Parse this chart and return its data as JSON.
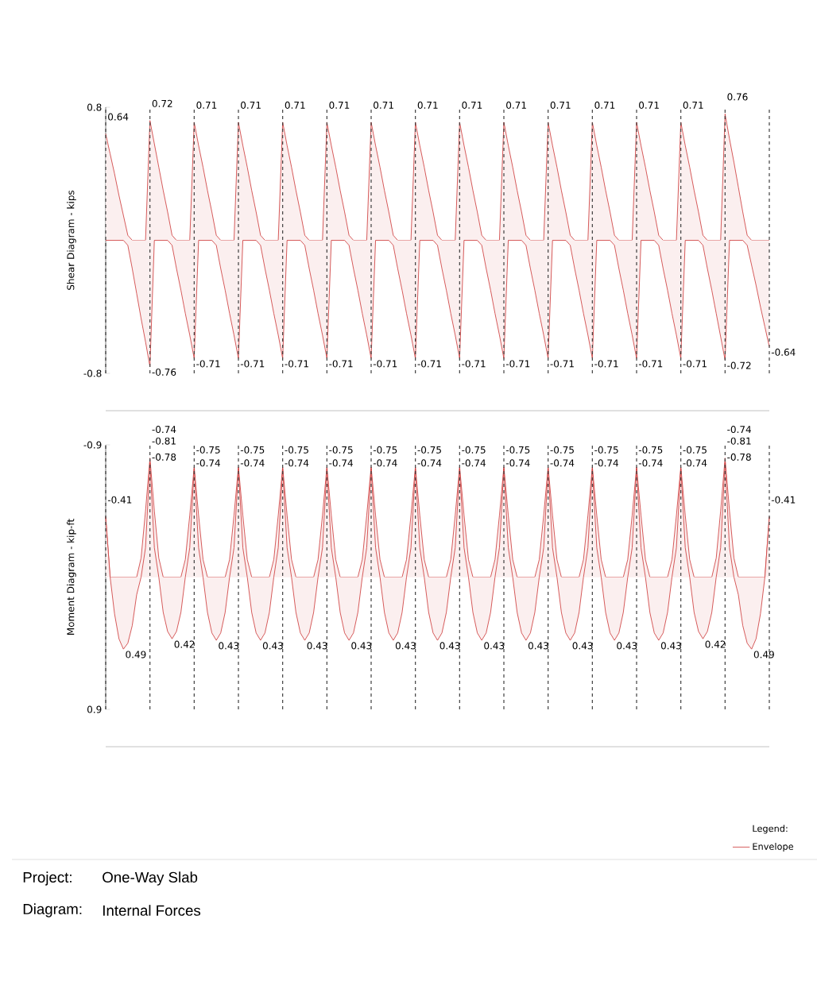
{
  "chart_data": [
    {
      "type": "area",
      "ylabel": "Shear Diagram - kips",
      "ylim": [
        -0.8,
        0.8
      ],
      "yticks": [
        -0.8,
        0.8
      ],
      "tick_labels": "y",
      "categories": [
        null,
        null,
        null,
        null,
        null,
        null,
        null,
        null,
        null,
        null,
        null,
        null,
        null,
        null,
        null,
        null,
        null,
        null,
        null,
        null,
        null,
        null,
        null,
        null,
        null,
        null,
        null,
        null,
        null,
        null,
        null,
        null,
        null,
        null,
        null,
        null,
        null,
        null,
        null,
        null,
        null,
        null,
        null,
        null,
        null,
        null,
        null,
        null,
        null,
        null,
        null,
        null,
        null,
        null,
        null,
        null,
        null,
        null,
        null,
        null,
        null,
        null,
        null,
        null,
        null,
        null,
        null,
        null,
        null,
        null,
        null,
        null,
        null,
        null,
        null,
        null,
        null,
        null,
        null,
        null,
        null,
        null,
        null,
        null,
        null,
        null,
        null,
        null,
        null,
        null,
        null,
        null,
        null,
        null,
        null,
        null,
        null,
        null,
        null,
        null,
        null,
        null,
        null,
        null,
        null,
        null,
        null,
        null,
        null,
        null,
        null,
        null,
        null,
        null,
        null,
        null,
        null,
        null,
        null,
        null,
        null,
        null,
        null,
        null,
        null,
        null,
        null,
        null,
        null,
        null,
        null,
        null,
        null,
        null,
        null,
        null,
        null,
        null,
        null,
        null,
        null,
        null,
        null,
        null,
        null,
        null,
        null,
        null,
        null,
        null,
        null
      ],
      "series": [
        {
          "color": "#cc3333",
          "values": [
            0.64,
            0.52,
            0.4,
            0.27,
            0.15,
            0.03,
            0,
            0,
            0,
            0,
            0.72,
            0.58,
            0.44,
            0.3,
            0.17,
            0.03,
            0,
            0,
            0,
            0,
            0.71,
            0.57,
            0.44,
            0.3,
            0.17,
            0.03,
            0,
            0,
            0,
            0,
            0.71,
            0.57,
            0.44,
            0.3,
            0.17,
            0.03,
            0,
            0,
            0,
            0,
            0.71,
            0.57,
            0.44,
            0.3,
            0.17,
            0.03,
            0,
            0,
            0,
            0,
            0.71,
            0.57,
            0.44,
            0.3,
            0.17,
            0.03,
            0,
            0,
            0,
            0,
            0.71,
            0.57,
            0.44,
            0.3,
            0.17,
            0.03,
            0,
            0,
            0,
            0,
            0.71,
            0.57,
            0.44,
            0.3,
            0.17,
            0.03,
            0,
            0,
            0,
            0,
            0.71,
            0.57,
            0.44,
            0.3,
            0.17,
            0.03,
            0,
            0,
            0,
            0,
            0.71,
            0.57,
            0.44,
            0.3,
            0.17,
            0.03,
            0,
            0,
            0,
            0,
            0.71,
            0.57,
            0.44,
            0.3,
            0.17,
            0.03,
            0,
            0,
            0,
            0,
            0.71,
            0.57,
            0.44,
            0.3,
            0.17,
            0.03,
            0,
            0,
            0,
            0,
            0.71,
            0.57,
            0.44,
            0.3,
            0.17,
            0.03,
            0,
            0,
            0,
            0,
            0.71,
            0.57,
            0.44,
            0.3,
            0.17,
            0.03,
            0,
            0,
            0,
            0,
            0.76,
            0.61,
            0.47,
            0.32,
            0.17,
            0.03,
            0,
            0,
            0,
            0,
            0
          ],
          "value_labels": [
            "0.64",
            null,
            null,
            null,
            null,
            null,
            null,
            null,
            null,
            null,
            "0.72",
            null,
            null,
            null,
            null,
            null,
            null,
            null,
            null,
            null,
            "0.71",
            null,
            null,
            null,
            null,
            null,
            null,
            null,
            null,
            null,
            "0.71",
            null,
            null,
            null,
            null,
            null,
            null,
            null,
            null,
            null,
            "0.71",
            null,
            null,
            null,
            null,
            null,
            null,
            null,
            null,
            null,
            "0.71",
            null,
            null,
            null,
            null,
            null,
            null,
            null,
            null,
            null,
            "0.71",
            null,
            null,
            null,
            null,
            null,
            null,
            null,
            null,
            null,
            "0.71",
            null,
            null,
            null,
            null,
            null,
            null,
            null,
            null,
            null,
            "0.71",
            null,
            null,
            null,
            null,
            null,
            null,
            null,
            null,
            null,
            "0.71",
            null,
            null,
            null,
            null,
            null,
            null,
            null,
            null,
            null,
            "0.71",
            null,
            null,
            null,
            null,
            null,
            null,
            null,
            null,
            null,
            "0.71",
            null,
            null,
            null,
            null,
            null,
            null,
            null,
            null,
            null,
            "0.71",
            null,
            null,
            null,
            null,
            null,
            null,
            null,
            null,
            null,
            "0.71",
            null,
            null,
            null,
            null,
            null,
            null,
            null,
            null,
            null,
            "0.76",
            null,
            null,
            null,
            null,
            null,
            null,
            null,
            null,
            null,
            null
          ]
        },
        {
          "color": "#cc3333",
          "values": [
            0,
            0,
            0,
            0,
            0,
            -0.03,
            -0.17,
            -0.32,
            -0.47,
            -0.61,
            -0.76,
            0,
            0,
            0,
            0,
            -0.03,
            -0.17,
            -0.3,
            -0.44,
            -0.57,
            -0.71,
            0,
            0,
            0,
            0,
            -0.03,
            -0.17,
            -0.3,
            -0.44,
            -0.57,
            -0.71,
            0,
            0,
            0,
            0,
            -0.03,
            -0.17,
            -0.3,
            -0.44,
            -0.57,
            -0.71,
            0,
            0,
            0,
            0,
            -0.03,
            -0.17,
            -0.3,
            -0.44,
            -0.57,
            -0.71,
            0,
            0,
            0,
            0,
            -0.03,
            -0.17,
            -0.3,
            -0.44,
            -0.57,
            -0.71,
            0,
            0,
            0,
            0,
            -0.03,
            -0.17,
            -0.3,
            -0.44,
            -0.57,
            -0.71,
            0,
            0,
            0,
            0,
            -0.03,
            -0.17,
            -0.3,
            -0.44,
            -0.57,
            -0.71,
            0,
            0,
            0,
            0,
            -0.03,
            -0.17,
            -0.3,
            -0.44,
            -0.57,
            -0.71,
            0,
            0,
            0,
            0,
            -0.03,
            -0.17,
            -0.3,
            -0.44,
            -0.57,
            -0.71,
            0,
            0,
            0,
            0,
            -0.03,
            -0.17,
            -0.3,
            -0.44,
            -0.57,
            -0.71,
            0,
            0,
            0,
            0,
            -0.03,
            -0.17,
            -0.3,
            -0.44,
            -0.57,
            -0.71,
            0,
            0,
            0,
            0,
            -0.03,
            -0.17,
            -0.3,
            -0.44,
            -0.57,
            -0.71,
            0,
            0,
            0,
            0,
            -0.03,
            -0.17,
            -0.3,
            -0.44,
            -0.58,
            -0.72,
            0,
            0,
            0,
            0,
            -0.03,
            -0.15,
            -0.27,
            -0.4,
            -0.52,
            -0.64
          ],
          "value_labels": [
            null,
            null,
            null,
            null,
            null,
            null,
            null,
            null,
            null,
            null,
            "-0.76",
            null,
            null,
            null,
            null,
            null,
            null,
            null,
            null,
            null,
            "-0.71",
            null,
            null,
            null,
            null,
            null,
            null,
            null,
            null,
            null,
            "-0.71",
            null,
            null,
            null,
            null,
            null,
            null,
            null,
            null,
            null,
            "-0.71",
            null,
            null,
            null,
            null,
            null,
            null,
            null,
            null,
            null,
            "-0.71",
            null,
            null,
            null,
            null,
            null,
            null,
            null,
            null,
            null,
            "-0.71",
            null,
            null,
            null,
            null,
            null,
            null,
            null,
            null,
            null,
            "-0.71",
            null,
            null,
            null,
            null,
            null,
            null,
            null,
            null,
            null,
            "-0.71",
            null,
            null,
            null,
            null,
            null,
            null,
            null,
            null,
            null,
            "-0.71",
            null,
            null,
            null,
            null,
            null,
            null,
            null,
            null,
            null,
            "-0.71",
            null,
            null,
            null,
            null,
            null,
            null,
            null,
            null,
            null,
            "-0.71",
            null,
            null,
            null,
            null,
            null,
            null,
            null,
            null,
            null,
            "-0.71",
            null,
            null,
            null,
            null,
            null,
            null,
            null,
            null,
            null,
            "-0.71",
            null,
            null,
            null,
            null,
            null,
            null,
            null,
            null,
            null,
            "-0.72",
            null,
            null,
            null,
            null,
            null,
            null,
            null,
            null,
            null,
            "-0.64"
          ]
        }
      ]
    },
    {
      "type": "area",
      "ylabel": "Moment Diagram - kip-ft",
      "ylim": [
        0.9,
        -0.9
      ],
      "yticks": [
        -0.9,
        0.9
      ],
      "tick_labels": "y",
      "legend": "bottom right",
      "legend_title": "Legend:",
      "categories": [
        null,
        null,
        null,
        null,
        null,
        null,
        null,
        null,
        null,
        null,
        null,
        null,
        null,
        null,
        null,
        null,
        null,
        null,
        null,
        null,
        null,
        null,
        null,
        null,
        null,
        null,
        null,
        null,
        null,
        null,
        null,
        null,
        null,
        null,
        null,
        null,
        null,
        null,
        null,
        null,
        null,
        null,
        null,
        null,
        null,
        null,
        null,
        null,
        null,
        null,
        null,
        null,
        null,
        null,
        null,
        null,
        null,
        null,
        null,
        null,
        null,
        null,
        null,
        null,
        null,
        null,
        null,
        null,
        null,
        null,
        null,
        null,
        null,
        null,
        null,
        null,
        null,
        null,
        null,
        null,
        null,
        null,
        null,
        null,
        null,
        null,
        null,
        null,
        null,
        null,
        null,
        null,
        null,
        null,
        null,
        null,
        null,
        null,
        null,
        null,
        null,
        null,
        null,
        null,
        null,
        null,
        null,
        null,
        null,
        null,
        null,
        null,
        null,
        null,
        null,
        null,
        null,
        null,
        null,
        null,
        null,
        null,
        null,
        null,
        null,
        null,
        null,
        null,
        null,
        null,
        null,
        null,
        null,
        null,
        null,
        null,
        null,
        null,
        null,
        null,
        null,
        null,
        null,
        null,
        null,
        null,
        null,
        null,
        null,
        null,
        null
      ],
      "series": [
        {
          "name": "Envelope",
          "color": "#cc3333",
          "values": [
            -0.41,
            0,
            0,
            0,
            0,
            0,
            0,
            0,
            -0.13,
            -0.45,
            -0.81,
            -0.45,
            -0.13,
            0,
            0,
            0,
            0,
            0,
            -0.12,
            -0.42,
            -0.75,
            -0.42,
            -0.12,
            0,
            0,
            0,
            0,
            0,
            -0.12,
            -0.42,
            -0.75,
            -0.42,
            -0.12,
            0,
            0,
            0,
            0,
            0,
            -0.12,
            -0.42,
            -0.75,
            -0.42,
            -0.12,
            0,
            0,
            0,
            0,
            0,
            -0.12,
            -0.42,
            -0.75,
            -0.42,
            -0.12,
            0,
            0,
            0,
            0,
            0,
            -0.12,
            -0.42,
            -0.75,
            -0.42,
            -0.12,
            0,
            0,
            0,
            0,
            0,
            -0.12,
            -0.42,
            -0.75,
            -0.42,
            -0.12,
            0,
            0,
            0,
            0,
            0,
            -0.12,
            -0.42,
            -0.75,
            -0.42,
            -0.12,
            0,
            0,
            0,
            0,
            0,
            -0.12,
            -0.42,
            -0.75,
            -0.42,
            -0.12,
            0,
            0,
            0,
            0,
            0,
            -0.12,
            -0.42,
            -0.75,
            -0.42,
            -0.12,
            0,
            0,
            0,
            0,
            0,
            -0.12,
            -0.42,
            -0.75,
            -0.42,
            -0.12,
            0,
            0,
            0,
            0,
            0,
            -0.12,
            -0.42,
            -0.75,
            -0.42,
            -0.12,
            0,
            0,
            0,
            0,
            0,
            -0.12,
            -0.42,
            -0.75,
            -0.42,
            -0.12,
            0,
            0,
            0,
            0,
            0,
            -0.13,
            -0.45,
            -0.81,
            -0.45,
            -0.13,
            0,
            0,
            0,
            0,
            0,
            0,
            0,
            -0.41
          ],
          "value_labels": [
            "-0.41",
            null,
            null,
            null,
            null,
            null,
            null,
            null,
            null,
            null,
            "-0.81",
            null,
            null,
            null,
            null,
            null,
            null,
            null,
            null,
            null,
            "-0.75",
            null,
            null,
            null,
            null,
            null,
            null,
            null,
            null,
            null,
            "-0.75",
            null,
            null,
            null,
            null,
            null,
            null,
            null,
            null,
            null,
            "-0.75",
            null,
            null,
            null,
            null,
            null,
            null,
            null,
            null,
            null,
            "-0.75",
            null,
            null,
            null,
            null,
            null,
            null,
            null,
            null,
            null,
            "-0.75",
            null,
            null,
            null,
            null,
            null,
            null,
            null,
            null,
            null,
            "-0.75",
            null,
            null,
            null,
            null,
            null,
            null,
            null,
            null,
            null,
            "-0.75",
            null,
            null,
            null,
            null,
            null,
            null,
            null,
            null,
            null,
            "-0.75",
            null,
            null,
            null,
            null,
            null,
            null,
            null,
            null,
            null,
            "-0.75",
            null,
            null,
            null,
            null,
            null,
            null,
            null,
            null,
            null,
            "-0.75",
            null,
            null,
            null,
            null,
            null,
            null,
            null,
            null,
            null,
            "-0.75",
            null,
            null,
            null,
            null,
            null,
            null,
            null,
            null,
            null,
            "-0.75",
            null,
            null,
            null,
            null,
            null,
            null,
            null,
            null,
            null,
            "-0.81",
            null,
            null,
            null,
            null,
            null,
            null,
            null,
            null,
            null,
            "-0.41"
          ]
        },
        {
          "color": "#cc3333",
          "values": [
            -0.41,
            0,
            0.25,
            0.42,
            0.49,
            0.45,
            0.33,
            0.12,
            0,
            -0.2,
            -0.78,
            -0.2,
            0,
            0.24,
            0.37,
            0.42,
            0.37,
            0.24,
            0,
            -0.2,
            -0.74,
            -0.2,
            0,
            0.24,
            0.38,
            0.43,
            0.38,
            0.24,
            0,
            -0.2,
            -0.74,
            -0.2,
            0,
            0.24,
            0.38,
            0.43,
            0.38,
            0.24,
            0,
            -0.2,
            -0.74,
            -0.2,
            0,
            0.24,
            0.38,
            0.43,
            0.38,
            0.24,
            0,
            -0.2,
            -0.74,
            -0.2,
            0,
            0.24,
            0.38,
            0.43,
            0.38,
            0.24,
            0,
            -0.2,
            -0.74,
            -0.2,
            0,
            0.24,
            0.38,
            0.43,
            0.38,
            0.24,
            0,
            -0.2,
            -0.74,
            -0.2,
            0,
            0.24,
            0.38,
            0.43,
            0.38,
            0.24,
            0,
            -0.2,
            -0.74,
            -0.2,
            0,
            0.24,
            0.38,
            0.43,
            0.38,
            0.24,
            0,
            -0.2,
            -0.74,
            -0.2,
            0,
            0.24,
            0.38,
            0.43,
            0.38,
            0.24,
            0,
            -0.2,
            -0.74,
            -0.2,
            0,
            0.24,
            0.38,
            0.43,
            0.38,
            0.24,
            0,
            -0.2,
            -0.74,
            -0.2,
            0,
            0.24,
            0.38,
            0.43,
            0.38,
            0.24,
            0,
            -0.2,
            -0.74,
            -0.2,
            0,
            0.24,
            0.38,
            0.43,
            0.38,
            0.24,
            0,
            -0.2,
            -0.74,
            -0.2,
            0,
            0.24,
            0.37,
            0.42,
            0.37,
            0.24,
            0,
            -0.2,
            -0.78,
            -0.2,
            0,
            0.12,
            0.33,
            0.45,
            0.49,
            0.42,
            0.25,
            0,
            -0.41
          ],
          "value_labels": [
            null,
            null,
            null,
            null,
            "0.49",
            null,
            null,
            null,
            null,
            null,
            "-0.78",
            null,
            null,
            null,
            null,
            "0.42",
            null,
            null,
            null,
            null,
            "-0.74",
            null,
            null,
            null,
            null,
            "0.43",
            null,
            null,
            null,
            null,
            "-0.74",
            null,
            null,
            null,
            null,
            "0.43",
            null,
            null,
            null,
            null,
            "-0.74",
            null,
            null,
            null,
            null,
            "0.43",
            null,
            null,
            null,
            null,
            "-0.74",
            null,
            null,
            null,
            null,
            "0.43",
            null,
            null,
            null,
            null,
            "-0.74",
            null,
            null,
            null,
            null,
            "0.43",
            null,
            null,
            null,
            null,
            "-0.74",
            null,
            null,
            null,
            null,
            "0.43",
            null,
            null,
            null,
            null,
            "-0.74",
            null,
            null,
            null,
            null,
            "0.43",
            null,
            null,
            null,
            null,
            "-0.74",
            null,
            null,
            null,
            null,
            "0.43",
            null,
            null,
            null,
            null,
            "-0.74",
            null,
            null,
            null,
            null,
            "0.43",
            null,
            null,
            null,
            null,
            "-0.74",
            null,
            null,
            null,
            null,
            "0.43",
            null,
            null,
            null,
            null,
            "-0.74",
            null,
            null,
            null,
            null,
            "0.43",
            null,
            null,
            null,
            null,
            "-0.74",
            null,
            null,
            null,
            null,
            "0.42",
            null,
            null,
            null,
            null,
            "-0.78",
            null,
            null,
            null,
            null,
            null,
            "0.49",
            null,
            null,
            null,
            null
          ]
        }
      ],
      "annotations": [
        "-0.74",
        "-0.74",
        "Project:",
        "One-Way Slab",
        "Diagram:",
        "Internal Forces"
      ]
    }
  ]
}
